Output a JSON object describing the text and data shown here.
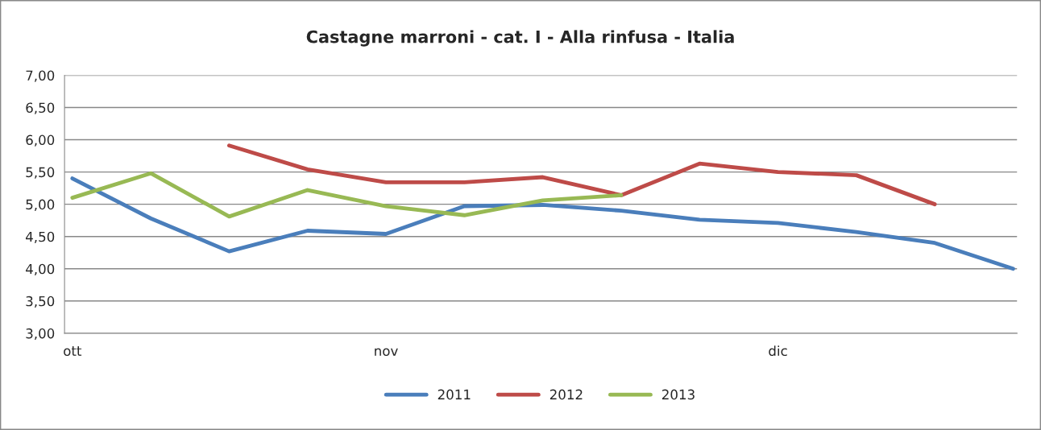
{
  "chart_data": {
    "type": "line",
    "title": "Castagne marroni - cat. I - Alla rinfusa - Italia",
    "categories": [
      "ott",
      null,
      null,
      null,
      "nov",
      null,
      null,
      null,
      null,
      "dic",
      null,
      null,
      null
    ],
    "series": [
      {
        "name": "2011",
        "color": "#4a7ebb",
        "values": [
          5.4,
          4.78,
          4.27,
          4.59,
          4.54,
          4.97,
          4.99,
          4.9,
          4.76,
          4.71,
          4.57,
          4.4,
          4.0
        ]
      },
      {
        "name": "2012",
        "color": "#be4b48",
        "values": [
          null,
          null,
          5.91,
          5.54,
          5.34,
          5.34,
          5.42,
          5.14,
          5.63,
          5.5,
          5.45,
          5.0,
          null
        ]
      },
      {
        "name": "2013",
        "color": "#98b954",
        "values": [
          5.1,
          5.48,
          4.81,
          5.22,
          4.97,
          4.83,
          5.06,
          5.14,
          null,
          null,
          null,
          null,
          null
        ]
      }
    ],
    "ylim": [
      3,
      7
    ],
    "yticks": [
      {
        "value": 3,
        "label": "3,00"
      },
      {
        "value": 3.5,
        "label": "3,50"
      },
      {
        "value": 4,
        "label": "4,00"
      },
      {
        "value": 4.5,
        "label": "4,50"
      },
      {
        "value": 5,
        "label": "5,00"
      },
      {
        "value": 5.5,
        "label": "5,50"
      },
      {
        "value": 6,
        "label": "6,00"
      },
      {
        "value": 6.5,
        "label": "6,50"
      },
      {
        "value": 7,
        "label": "7,00"
      }
    ],
    "grid": "y",
    "legend": "bottom",
    "marker": "none",
    "line_style": "solid"
  }
}
